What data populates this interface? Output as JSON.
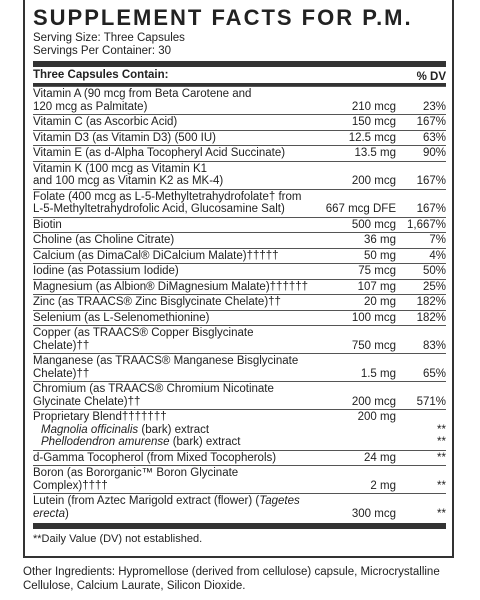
{
  "title": "SUPPLEMENT FACTS FOR P.M.",
  "serving_size": "Serving Size: Three Capsules",
  "servings_per_container": "Servings Per Container: 30",
  "header": {
    "left": "Three Capsules Contain:",
    "right": "% DV"
  },
  "rows": [
    {
      "name": "Vitamin A (90 mcg from Beta Carotene and 120 mcg as Palmitate)",
      "line1": "Vitamin A (90 mcg from Beta Carotene and",
      "line2": "120 mcg as Palmitate)",
      "amount": "210 mcg",
      "dv": "23%"
    },
    {
      "line1": "Vitamin C (as Ascorbic Acid)",
      "amount": "150 mcg",
      "dv": "167%"
    },
    {
      "line1": "Vitamin D3 (as Vitamin D3) (500 IU)",
      "amount": "12.5 mcg",
      "dv": "63%"
    },
    {
      "line1": "Vitamin E (as d-Alpha Tocopheryl Acid Succinate)",
      "amount": "13.5 mg",
      "dv": "90%"
    },
    {
      "line1": "Vitamin K (100 mcg as Vitamin K1",
      "line2": "and 100 mcg as Vitamin K2 as MK-4)",
      "amount": "200 mcg",
      "dv": "167%"
    },
    {
      "line1": "Folate (400 mcg as L-5-Methyltetrahydrofolate† from",
      "line2": "L-5-Methyltetrahydrofolic Acid, Glucosamine Salt)",
      "amount": "667 mcg DFE",
      "dv": "167%"
    },
    {
      "line1": "Biotin",
      "amount": "500 mcg",
      "dv": "1,667%"
    },
    {
      "line1": "Choline (as Choline Citrate)",
      "amount": "36 mg",
      "dv": "7%"
    },
    {
      "line1": "Calcium (as DimaCal® DiCalcium Malate)†††††",
      "amount": "50 mg",
      "dv": "4%"
    },
    {
      "line1": "Iodine (as Potassium Iodide)",
      "amount": "75 mcg",
      "dv": "50%"
    },
    {
      "line1": "Magnesium (as Albion® DiMagnesium Malate)††††††",
      "amount": "107 mg",
      "dv": "25%"
    },
    {
      "line1": "Zinc (as TRAACS® Zinc Bisglycinate Chelate)††",
      "amount": "20 mg",
      "dv": "182%"
    },
    {
      "line1": "Selenium (as L-Selenomethionine)",
      "amount": "100 mcg",
      "dv": "182%"
    },
    {
      "line1": "Copper (as TRAACS® Copper Bisglycinate Chelate)††",
      "amount": "750 mcg",
      "dv": "83%"
    },
    {
      "line1": "Manganese (as TRAACS® Manganese Bisglycinate Chelate)††",
      "amount": "1.5 mg",
      "dv": "65%"
    },
    {
      "line1": "Chromium (as TRAACS® Chromium Nicotinate",
      "line2": "Glycinate Chelate)††",
      "amount": "200 mcg",
      "dv": "571%"
    }
  ],
  "blend": {
    "name": "Proprietary Blend†††††††",
    "amount": "200 mg",
    "items": [
      {
        "italic": "Magnolia officinalis",
        "rest": " (bark) extract",
        "dv": "**"
      },
      {
        "italic": "Phellodendron amurense",
        "rest": " (bark) extract",
        "dv": "**"
      }
    ]
  },
  "rows_after": [
    {
      "line1": "d-Gamma Tocopherol (from Mixed Tocopherols)",
      "amount": "24 mg",
      "dv": "**"
    },
    {
      "line1": "Boron (as Bororganic™ Boron Glycinate Complex)††††",
      "amount": "2 mg",
      "dv": "**"
    }
  ],
  "lutein": {
    "pre": "Lutein (from Aztec Marigold extract (flower) (",
    "italic": "Tagetes erecta",
    "post": ")",
    "amount": "300 mcg",
    "dv": "**"
  },
  "footnote": "**Daily Value (DV) not established.",
  "other_ingredients": "Other Ingredients: Hypromellose (derived from cellulose) capsule, Microcrystalline Cellulose, Calcium Laurate, Silicon Dioxide."
}
